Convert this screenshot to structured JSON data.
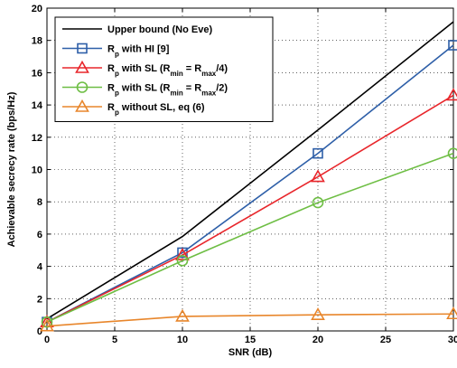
{
  "chart_data": {
    "type": "line",
    "xlabel": "SNR (dB)",
    "ylabel": "Achievable secrecy rate (bps/Hz)",
    "xlim": [
      0,
      30
    ],
    "ylim": [
      0,
      20
    ],
    "xticks": [
      0,
      5,
      10,
      15,
      20,
      25,
      30
    ],
    "yticks": [
      0,
      2,
      4,
      6,
      8,
      10,
      12,
      14,
      16,
      18,
      20
    ],
    "grid": true,
    "legend_position": "top-left",
    "series": [
      {
        "name": "Upper bound (No Eve)",
        "color": "#000000",
        "marker": "none",
        "x": [
          0,
          10,
          20,
          30
        ],
        "y": [
          0.75,
          5.85,
          12.45,
          19.15
        ]
      },
      {
        "name_base": "R",
        "name_sub": "p",
        "name_rest": " with HI [9]",
        "color": "#2E5FA8",
        "marker": "square",
        "x": [
          0,
          10,
          20,
          30
        ],
        "y": [
          0.55,
          4.85,
          11.0,
          17.7
        ]
      },
      {
        "name_base": "R",
        "name_sub": "p",
        "name_rest": " with SL (R",
        "name_sub2": "min",
        "name_mid": " = R",
        "name_sub3": "max",
        "name_end": "/4)",
        "color": "#E8262B",
        "marker": "triangle",
        "x": [
          0,
          10,
          20,
          30
        ],
        "y": [
          0.55,
          4.7,
          9.55,
          14.6
        ]
      },
      {
        "name_base": "R",
        "name_sub": "p",
        "name_rest": " with SL (R",
        "name_sub2": "min",
        "name_mid": " = R",
        "name_sub3": "max",
        "name_end": "/2)",
        "color": "#6EBE44",
        "marker": "circle",
        "x": [
          0,
          10,
          20,
          30
        ],
        "y": [
          0.55,
          4.35,
          7.95,
          11.0
        ]
      },
      {
        "name_base": "R",
        "name_sub": "p",
        "name_rest": " without SL, eq (6)",
        "color": "#E8862B",
        "marker": "triangle",
        "x": [
          0,
          10,
          20,
          30
        ],
        "y": [
          0.3,
          0.9,
          1.0,
          1.05
        ]
      }
    ]
  }
}
